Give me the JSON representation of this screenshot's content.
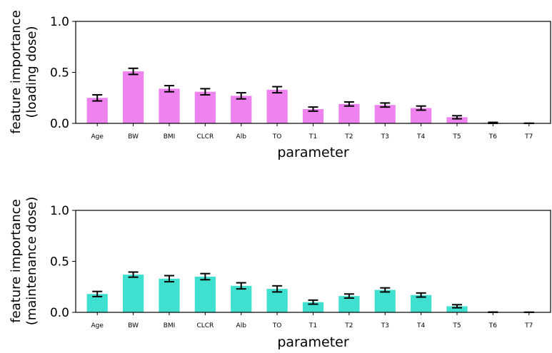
{
  "chart_data": [
    {
      "type": "bar",
      "xlabel": "parameter",
      "ylabel": [
        "feature importance",
        "(loading dose)"
      ],
      "ylim": [
        0,
        1.0
      ],
      "yticks": [
        0.0,
        0.5,
        1.0
      ],
      "ytick_labels": [
        "0.0",
        "0.5",
        "1.0"
      ],
      "categories": [
        "Age",
        "BW",
        "BMI",
        "CLCR",
        "Alb",
        "TO",
        "T1",
        "T2",
        "T3",
        "T4",
        "T5",
        "T6",
        "T7"
      ],
      "values": [
        0.25,
        0.51,
        0.34,
        0.31,
        0.27,
        0.33,
        0.14,
        0.19,
        0.18,
        0.15,
        0.06,
        0.005,
        0.0
      ],
      "errors": [
        0.03,
        0.03,
        0.03,
        0.03,
        0.03,
        0.03,
        0.02,
        0.02,
        0.02,
        0.02,
        0.015,
        0.005,
        0.002
      ],
      "color": "#ee82ee",
      "grid": false
    },
    {
      "type": "bar",
      "xlabel": "parameter",
      "ylabel": [
        "feature importance",
        "(maintenance dose)"
      ],
      "ylim": [
        0,
        1.0
      ],
      "yticks": [
        0.0,
        0.5,
        1.0
      ],
      "ytick_labels": [
        "0.0",
        "0.5",
        "1.0"
      ],
      "categories": [
        "Age",
        "BW",
        "BMI",
        "CLCR",
        "Alb",
        "TO",
        "T1",
        "T2",
        "T3",
        "T4",
        "T5",
        "T6",
        "T7"
      ],
      "values": [
        0.18,
        0.37,
        0.33,
        0.35,
        0.26,
        0.23,
        0.1,
        0.16,
        0.22,
        0.17,
        0.06,
        0.0,
        0.0
      ],
      "errors": [
        0.025,
        0.025,
        0.03,
        0.03,
        0.03,
        0.03,
        0.02,
        0.02,
        0.02,
        0.02,
        0.015,
        0.003,
        0.002
      ],
      "color": "#40e0d0",
      "grid": false
    }
  ]
}
